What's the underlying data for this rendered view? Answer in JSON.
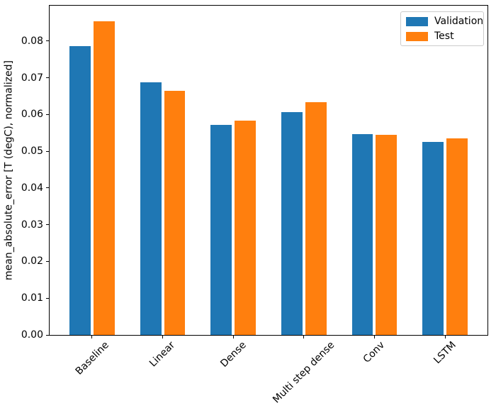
{
  "figure": {
    "background": "#ffffff",
    "text_color": "#000000",
    "spine_color": "#000000",
    "legend_border_color": "#cccccc"
  },
  "chart_data": {
    "type": "bar",
    "title": "",
    "xlabel": "",
    "ylabel": "mean_absolute_error [T (degC), normalized]",
    "categories": [
      "Baseline",
      "Linear",
      "Dense",
      "Multi step dense",
      "Conv",
      "LSTM"
    ],
    "series": [
      {
        "name": "Validation",
        "color": "#1f77b4",
        "values": [
          0.0785,
          0.0687,
          0.0572,
          0.0607,
          0.0546,
          0.0525
        ]
      },
      {
        "name": "Test",
        "color": "#ff7f0e",
        "values": [
          0.0853,
          0.0665,
          0.0584,
          0.0633,
          0.0544,
          0.0534
        ]
      }
    ],
    "ylim": [
      0,
      0.0896
    ],
    "yticks": [
      0,
      0.01,
      0.02,
      0.03,
      0.04,
      0.05,
      0.06,
      0.07,
      0.08
    ],
    "ytick_labels": [
      "0.00",
      "0.01",
      "0.02",
      "0.03",
      "0.04",
      "0.05",
      "0.06",
      "0.07",
      "0.08"
    ],
    "xtick_rotation_deg": 45,
    "bar_width_units": 0.3,
    "bar_offset_units": 0.17,
    "xlim": [
      -0.602,
      5.602
    ],
    "grid": false,
    "legend": {
      "position": "upper right",
      "entries": [
        "Validation",
        "Test"
      ]
    }
  }
}
